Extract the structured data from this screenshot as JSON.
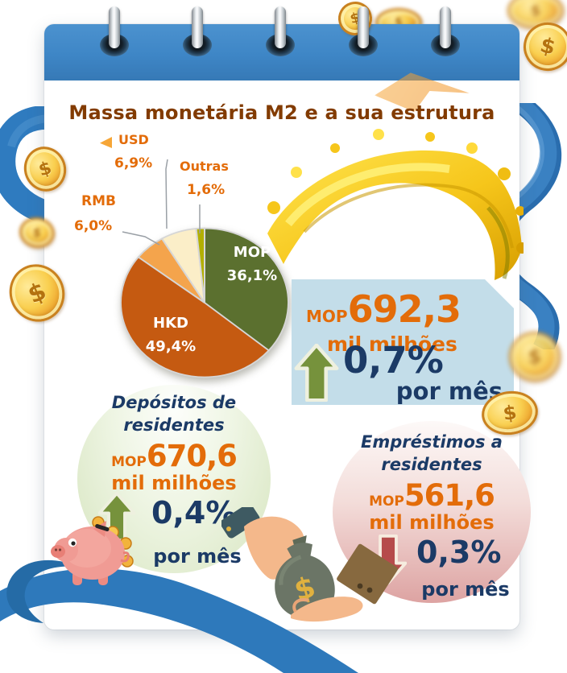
{
  "title": "Massa monetária M2 e a sua estrutura",
  "chart_data": {
    "type": "pie",
    "title": "Massa monetária M2 e a sua estrutura",
    "unit": "%",
    "labels": [
      "MOP",
      "HKD",
      "RMB",
      "USD",
      "Outras"
    ],
    "values": [
      36.1,
      49.4,
      6.0,
      6.9,
      1.6
    ],
    "direction": "clockwise",
    "start_angle_deg": 0,
    "legend_position": "labels-on-and-around-pie",
    "slices": [
      {
        "label": "MOP",
        "value": 36.1,
        "display": "36,1%",
        "color": "#5b702f",
        "label_position": "inside"
      },
      {
        "label": "HKD",
        "value": 49.4,
        "display": "49,4%",
        "color": "#c55a11",
        "label_position": "inside"
      },
      {
        "label": "RMB",
        "value": 6.0,
        "display": "6,0%",
        "color": "#f4a44c",
        "label_position": "outside"
      },
      {
        "label": "USD",
        "value": 6.9,
        "display": "6,9%",
        "color": "#fbeec8",
        "label_position": "outside"
      },
      {
        "label": "Outras",
        "value": 1.6,
        "display": "1,6%",
        "color": "#b2af00",
        "label_position": "outside"
      }
    ]
  },
  "m2_box": {
    "currency": "MOP",
    "value": "692,3",
    "unit": "mil milhões",
    "change": "0,7%",
    "period": "por mês",
    "direction": "up"
  },
  "deposits": {
    "title_line1": "Depósitos de",
    "title_line2": "residentes",
    "currency": "MOP",
    "value": "670,6",
    "unit": "mil milhões",
    "change": "0,4%",
    "period": "por mês",
    "direction": "up"
  },
  "loans": {
    "title_line1": "Empréstimos a",
    "title_line2": "residentes",
    "currency": "MOP",
    "value": "561,6",
    "unit": "mil milhões",
    "change": "0,3%",
    "period": "por mês",
    "direction": "down"
  },
  "decor": {
    "coin_symbol": "$"
  },
  "colors": {
    "orange": "#e36c09",
    "navy": "#1b3a66",
    "title_brown": "#823b00",
    "header_blue": "#3e86c6",
    "ribbon_blue": "#2e79bb",
    "ribbon_blue_dark": "#256ba6",
    "box_bg": "#c3dde9",
    "up_green": "#76923c",
    "down_red": "#b64b4b",
    "green_circle": "#d7e5c0",
    "red_circle": "#dda3a2",
    "coin_gold": "#f9cf4f"
  }
}
